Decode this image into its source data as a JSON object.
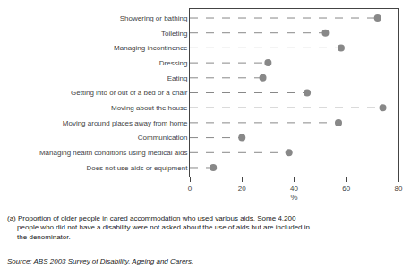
{
  "chart_data": {
    "type": "dot",
    "orientation": "horizontal",
    "categories": [
      "Showering or bathing",
      "Toileting",
      "Managing incontinence",
      "Dressing",
      "Eating",
      "Getting into or out of a bed or a chair",
      "Moving about the house",
      "Moving around places away from home",
      "Communication",
      "Managing health conditions using medical aids",
      "Does not use aids or equipment"
    ],
    "values": [
      72,
      52,
      58,
      30,
      28,
      45,
      74,
      57,
      20,
      38,
      9
    ],
    "color": "#888888",
    "marker": "circle",
    "line_style": "dashed",
    "xlabel": "%",
    "xlim": [
      0,
      80
    ],
    "xticks": [
      0,
      20,
      40,
      60,
      80
    ],
    "grid": false,
    "annotations": [
      "(a) Proportion of older people in cared accommodation who used various aids. Some 4,200\n     people who did not have a disability were not asked about the use of aids but are included in\n     the denominator.",
      "Source: ABS 2003 Survey of Disability, Ageing and Carers."
    ]
  }
}
